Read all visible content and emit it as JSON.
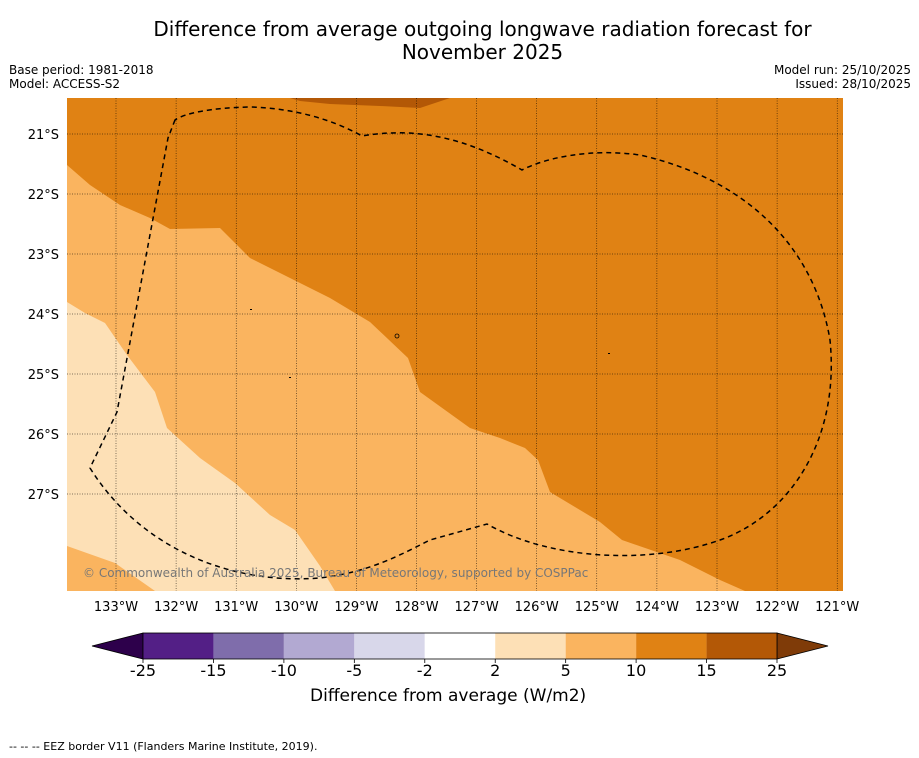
{
  "title_line1": "Difference from average outgoing longwave radiation forecast for",
  "title_line2": "November 2025",
  "base_period": "Base period: 1981-2018",
  "model": "Model: ACCESS-S2",
  "model_run": "Model run: 25/10/2025",
  "issued": "Issued: 28/10/2025",
  "copyright": "© Commonwealth of Australia 2025, Bureau of Meteorology, supported by COSPPac",
  "footnote": "--  --  -- EEZ border V11 (Flanders Marine Institute, 2019).",
  "map": {
    "lat_labels": [
      "21°S",
      "22°S",
      "23°S",
      "24°S",
      "25°S",
      "26°S",
      "27°S"
    ],
    "lon_labels": [
      "133°W",
      "132°W",
      "131°W",
      "130°W",
      "129°W",
      "128°W",
      "127°W",
      "126°W",
      "125°W",
      "124°W",
      "123°W",
      "122°W",
      "121°W"
    ]
  },
  "colorbar": {
    "label": "Difference from average (W/m2)",
    "ticks": [
      "-25",
      "-15",
      "-10",
      "-5",
      "-2",
      "2",
      "5",
      "10",
      "15",
      "25"
    ],
    "colors": [
      "#531f86",
      "#7f6dab",
      "#b2a9d2",
      "#d8d7ea",
      "#ffffff",
      "#fde0b6",
      "#fab45f",
      "#e08214",
      "#b35806"
    ],
    "under_color": "#2d004b",
    "over_color": "#7f3b08"
  }
}
